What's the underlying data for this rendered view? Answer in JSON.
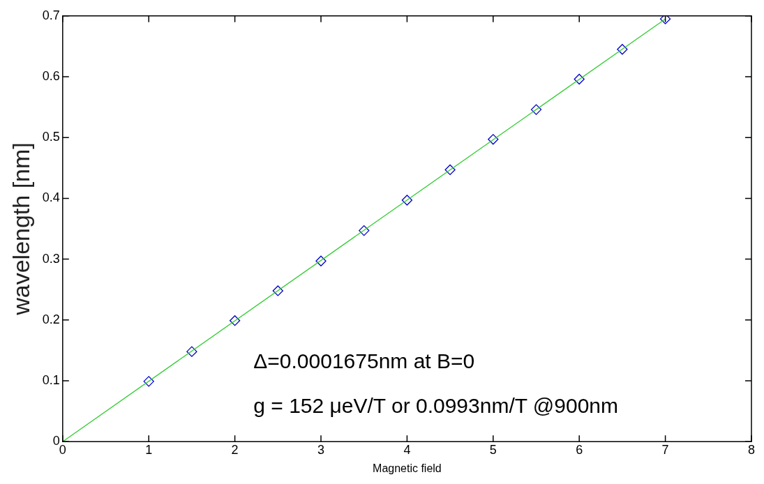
{
  "chart_data": {
    "type": "scatter",
    "xlabel": "Magnetic field",
    "ylabel": "wavelength [nm]",
    "xlim": [
      0,
      8
    ],
    "xticks": [
      0,
      1,
      2,
      3,
      4,
      5,
      6,
      7,
      8
    ],
    "ylim": [
      0,
      0.7
    ],
    "yticks": [
      0,
      0.1,
      0.2,
      0.3,
      0.4,
      0.5,
      0.6,
      0.7
    ],
    "marker": "diamond",
    "series": [
      {
        "type": "line",
        "color": "#33cc33",
        "marker": "none",
        "x": [
          0,
          7
        ],
        "values": [
          0,
          0.695
        ]
      },
      {
        "color": "#0000cc",
        "x": [
          1,
          1.5,
          2,
          2.5,
          3,
          3.5,
          4,
          4.5,
          5,
          5.5,
          6,
          6.5,
          7
        ],
        "values": [
          0.099,
          0.148,
          0.199,
          0.248,
          0.297,
          0.347,
          0.397,
          0.447,
          0.497,
          0.546,
          0.596,
          0.645,
          0.695
        ]
      }
    ],
    "annotations": [
      "Δ=0.0001675nm at B=0",
      "g = 152 μeV/T or 0.0993nm/T @900nm"
    ]
  }
}
